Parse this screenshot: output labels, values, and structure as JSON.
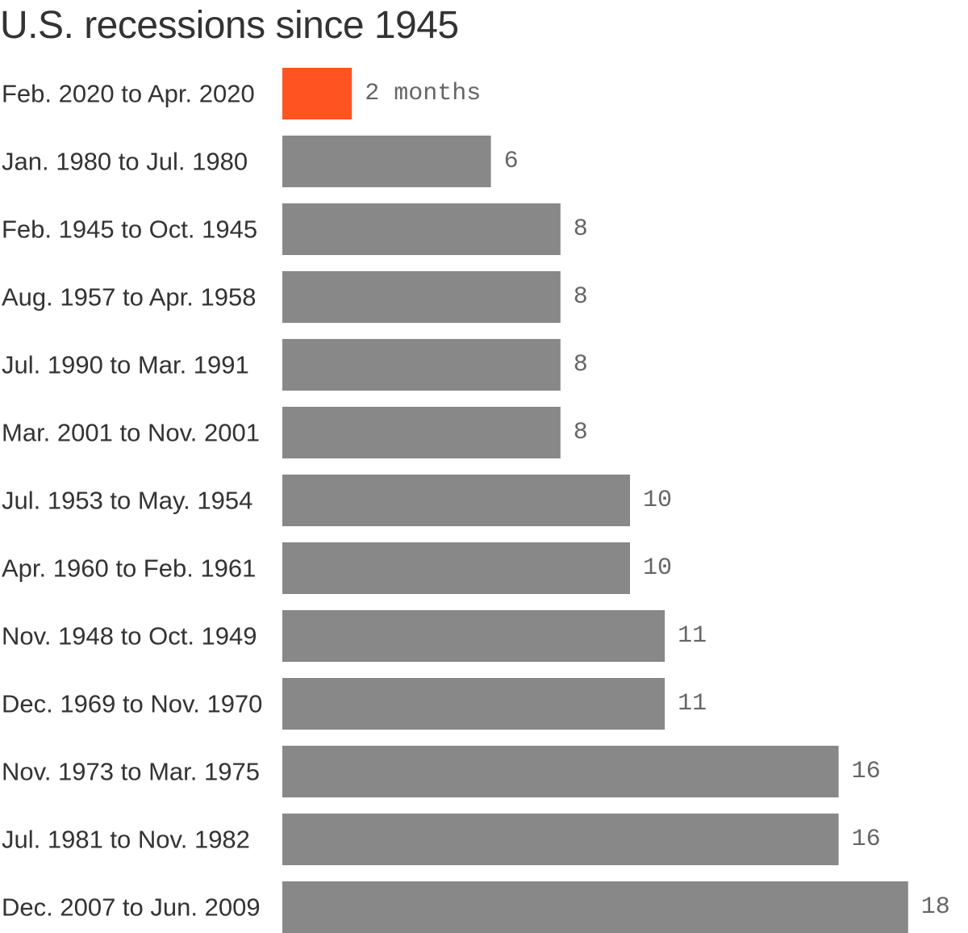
{
  "chart_data": {
    "type": "bar",
    "orientation": "horizontal",
    "title": "U.S. recessions since 1945",
    "xlabel": "",
    "ylabel": "",
    "xlim": [
      0,
      18
    ],
    "grid": false,
    "unit_label": "months",
    "categories": [
      "Feb. 2020 to Apr. 2020",
      "Jan. 1980 to Jul. 1980",
      "Feb. 1945 to Oct. 1945",
      "Aug. 1957 to Apr. 1958",
      "Jul. 1990 to Mar. 1991",
      "Mar. 2001 to Nov. 2001",
      "Jul. 1953 to May. 1954",
      "Apr. 1960 to Feb. 1961",
      "Nov. 1948 to Oct. 1949",
      "Dec. 1969 to Nov. 1970",
      "Nov. 1973 to Mar. 1975",
      "Jul. 1981 to Nov. 1982",
      "Dec. 2007 to Jun. 2009"
    ],
    "values": [
      2,
      6,
      8,
      8,
      8,
      8,
      10,
      10,
      11,
      11,
      16,
      16,
      18
    ],
    "highlight_index": 0,
    "colors": {
      "highlight": "#ff5322",
      "bar": "#888888",
      "label": "#333333",
      "value": "#666666"
    }
  }
}
